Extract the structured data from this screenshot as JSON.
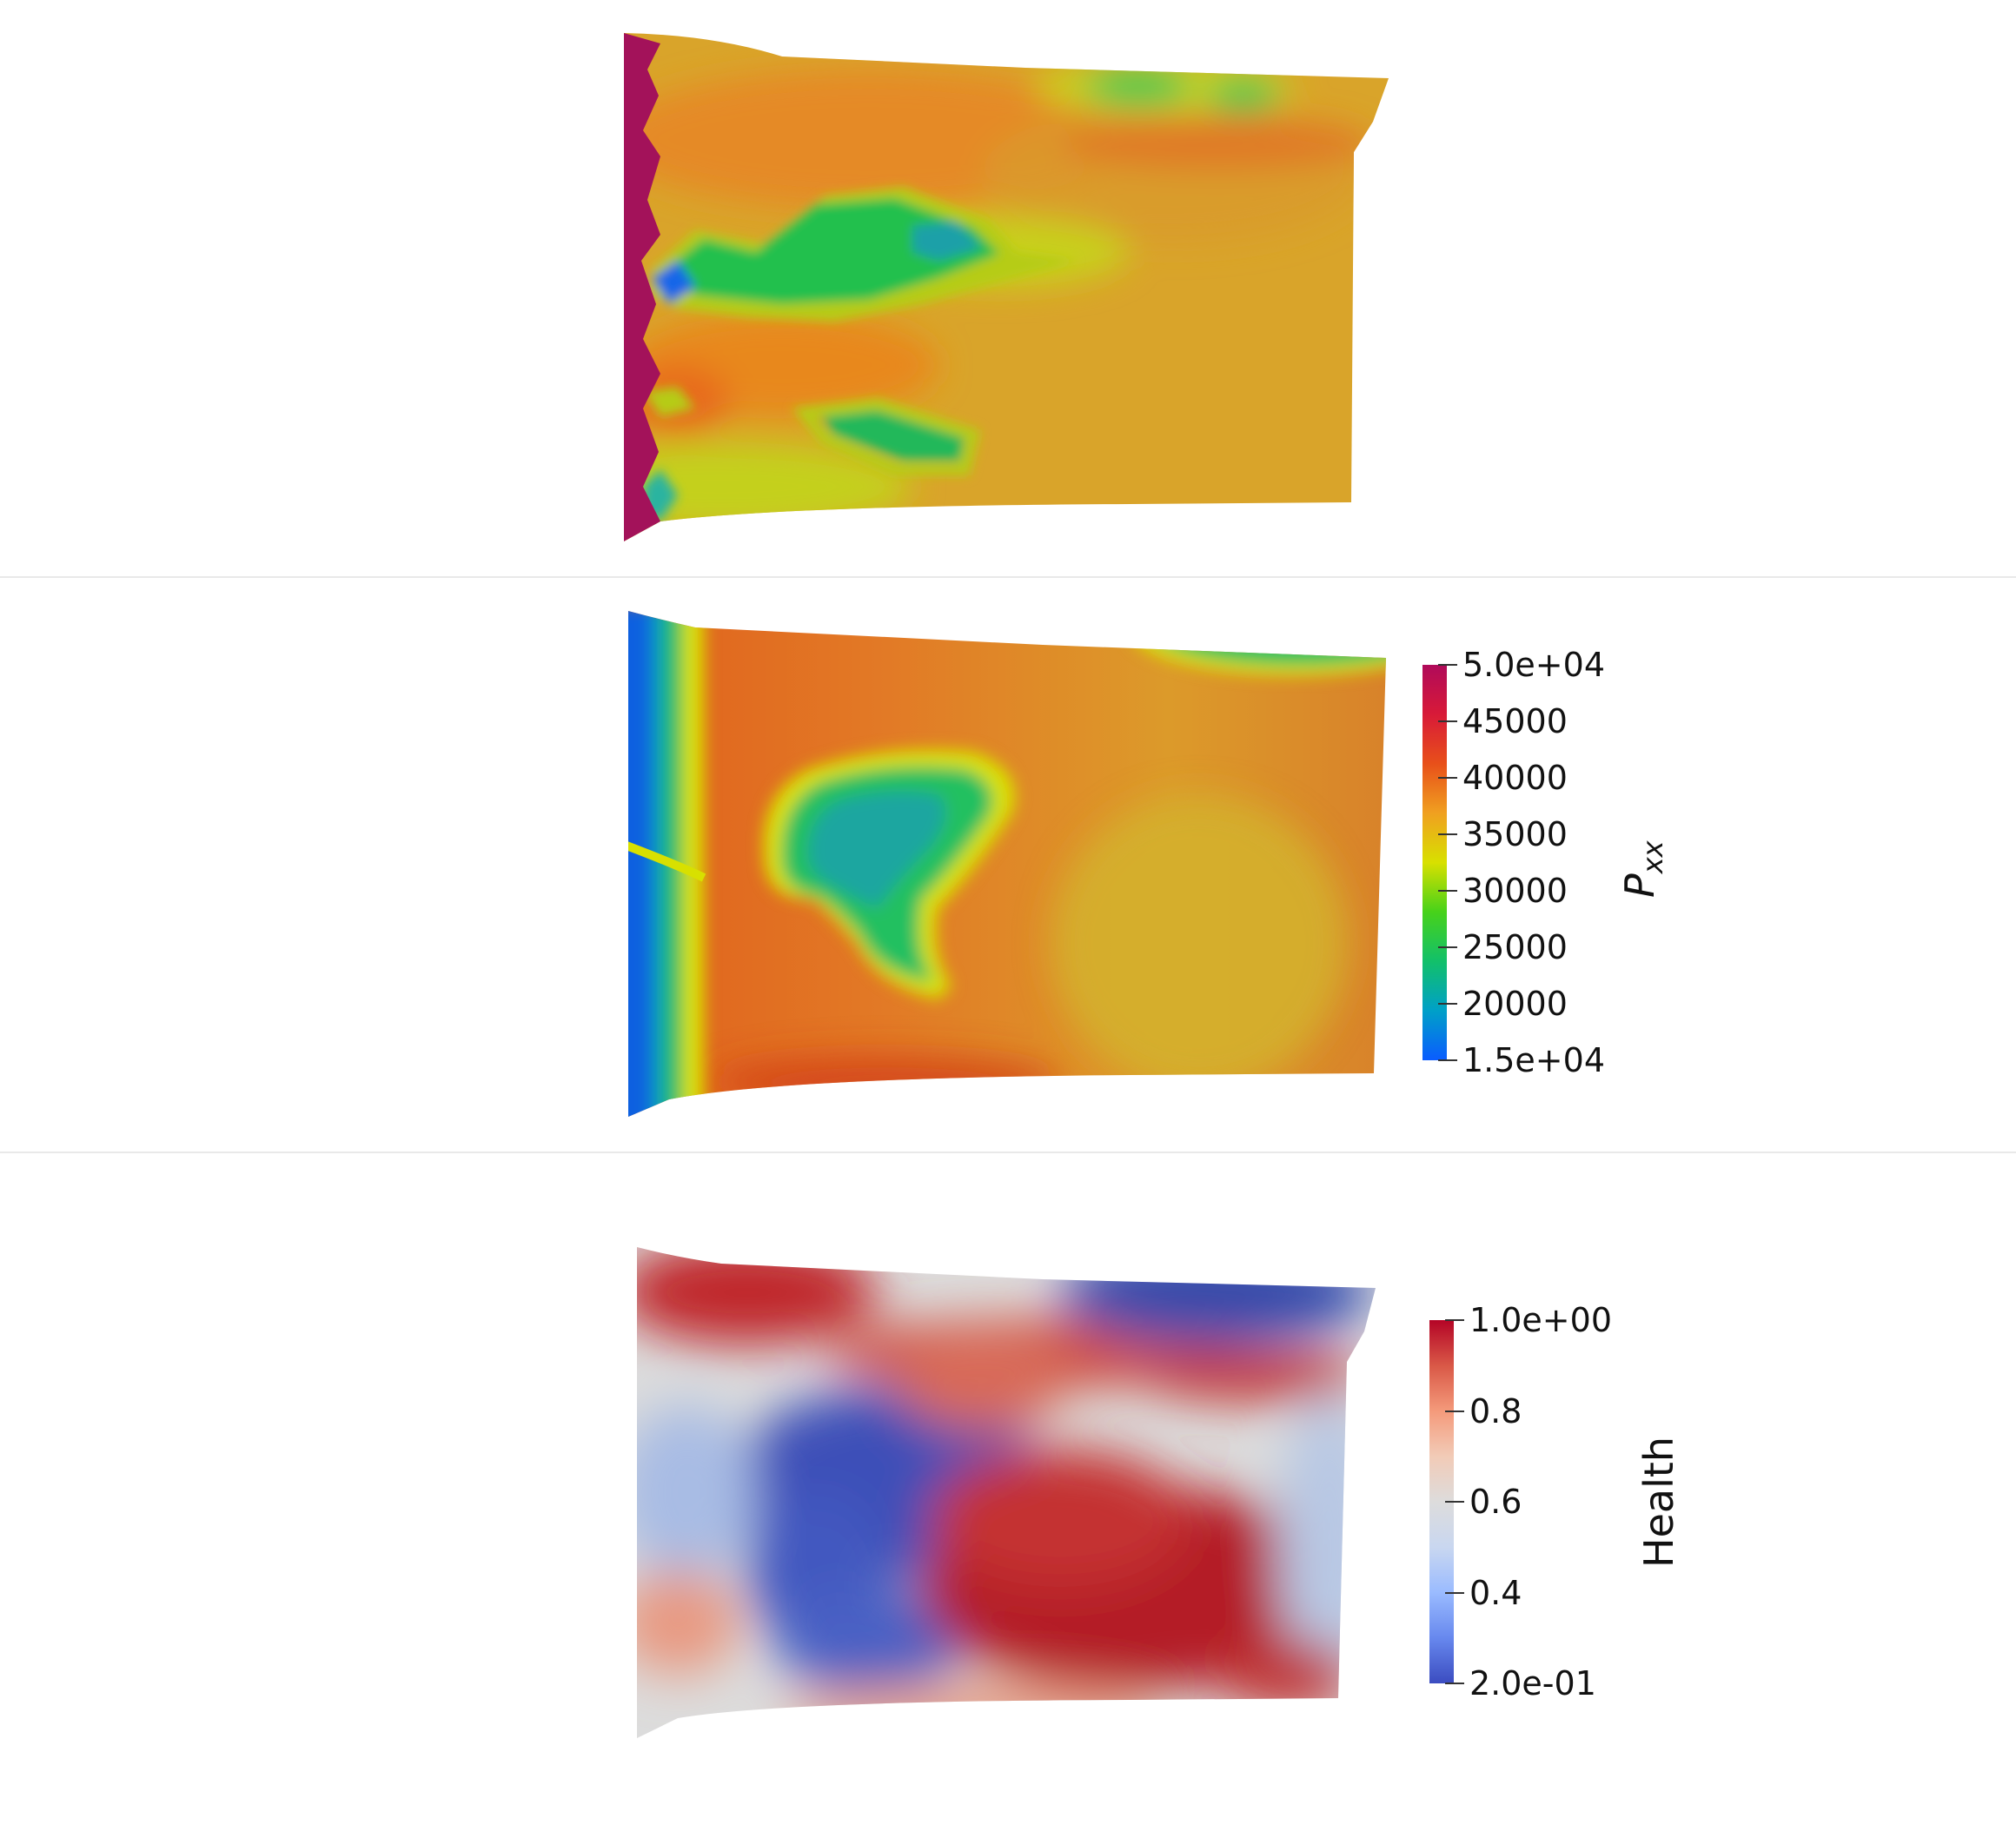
{
  "panels": [
    {
      "id": "panel-top",
      "field": "pxx-noisy"
    },
    {
      "id": "panel-middle",
      "field": "pxx-smooth"
    },
    {
      "id": "panel-bottom",
      "field": "health"
    }
  ],
  "pxx_colorbar": {
    "title_base": "P",
    "title_sub": "xx",
    "min": 15000,
    "max": 50000,
    "ticks": [
      "5.0e+04",
      "45000",
      "40000",
      "35000",
      "30000",
      "25000",
      "20000",
      "1.5e+04"
    ],
    "colormap": [
      "#0a5cff",
      "#00a0c8",
      "#12c06a",
      "#47d21a",
      "#d8e000",
      "#f0a020",
      "#e8501a",
      "#d81a38",
      "#b00a5a"
    ]
  },
  "health_colorbar": {
    "title": "Health",
    "min": 0.2,
    "max": 1.0,
    "ticks": [
      "1.0e+00",
      "0.8",
      "0.6",
      "0.4",
      "2.0e-01"
    ],
    "colormap": [
      "#3b4cc0",
      "#6788ee",
      "#9abbff",
      "#c9d7f0",
      "#dddcdc",
      "#f2cbb7",
      "#f49a7b",
      "#d95847",
      "#b40426"
    ]
  }
}
